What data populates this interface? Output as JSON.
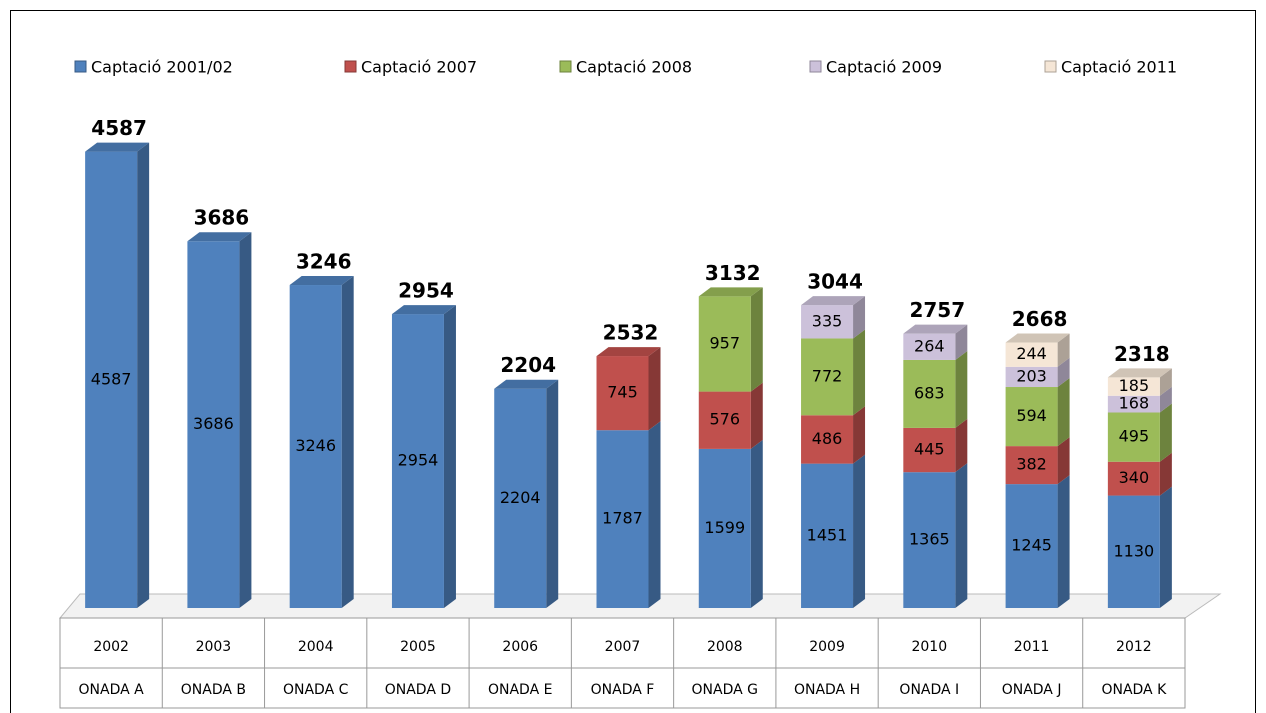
{
  "chart_data": {
    "type": "bar3d_stacked",
    "categories": [
      "2002",
      "2003",
      "2004",
      "2005",
      "2006",
      "2007",
      "2008",
      "2009",
      "2010",
      "2011",
      "2012"
    ],
    "waves": [
      "ONADA A",
      "ONADA B",
      "ONADA C",
      "ONADA D",
      "ONADA E",
      "ONADA F",
      "ONADA G",
      "ONADA H",
      "ONADA I",
      "ONADA J",
      "ONADA K"
    ],
    "series": [
      {
        "name": "Captació 2001/02",
        "color": "#4f81bd",
        "values": [
          4587,
          3686,
          3246,
          2954,
          2204,
          1787,
          1599,
          1451,
          1365,
          1245,
          1130
        ]
      },
      {
        "name": "Captació 2007",
        "color": "#c0504d",
        "values": [
          null,
          null,
          null,
          null,
          null,
          745,
          576,
          486,
          445,
          382,
          340
        ]
      },
      {
        "name": "Captació 2008",
        "color": "#9bbb59",
        "values": [
          null,
          null,
          null,
          null,
          null,
          null,
          957,
          772,
          683,
          594,
          495
        ]
      },
      {
        "name": "Captació 2009",
        "color": "#ccc1da",
        "values": [
          null,
          null,
          null,
          null,
          null,
          null,
          null,
          335,
          264,
          203,
          168
        ]
      },
      {
        "name": "Captació 2011",
        "color": "#f5e6d6",
        "values": [
          null,
          null,
          null,
          null,
          null,
          null,
          null,
          null,
          null,
          244,
          185
        ]
      }
    ],
    "totals": [
      4587,
      3686,
      3246,
      2954,
      2204,
      2532,
      3132,
      3044,
      2757,
      2668,
      2318
    ]
  }
}
